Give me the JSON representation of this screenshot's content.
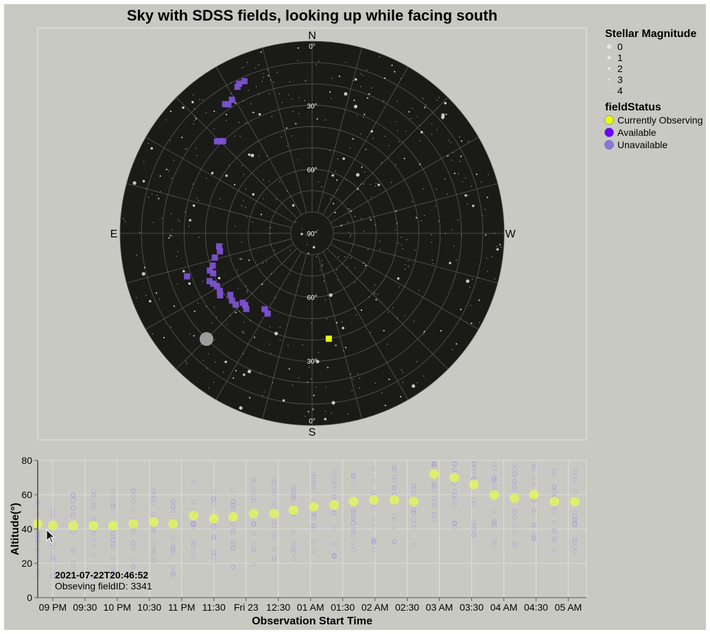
{
  "chart_data": [
    {
      "type": "scatter",
      "title": "Sky with SDSS fields, looking up while facing south",
      "projection": "polar altitude-azimuth",
      "compass": {
        "north": "N",
        "south": "S",
        "east": "E",
        "west": "W"
      },
      "altitude_rings": [
        "0°",
        "30°",
        "60°",
        "90°",
        "60°",
        "30°",
        "0°"
      ],
      "grid": true,
      "legend_position": "top-right",
      "legends": {
        "magnitude": {
          "title": "Stellar Magnitude",
          "values": [
            "0",
            "1",
            "2",
            "3",
            "4"
          ]
        },
        "status": {
          "title": "fieldStatus",
          "entries": [
            {
              "label": "Currently Observing",
              "color": "#e8ff00"
            },
            {
              "label": "Available",
              "color": "#6a00ff"
            },
            {
              "label": "Unavailable",
              "color": "#8a78d8"
            }
          ]
        }
      },
      "colors": {
        "sky": "#1a1a17",
        "star": "#d8d8d8",
        "field": "#7b52d0",
        "current": "#e8ff00"
      },
      "current_field": {
        "altitude": 40,
        "azimuth": 189
      },
      "fields": [
        {
          "altitude": 12,
          "azimuth": 26
        },
        {
          "altitude": 12,
          "azimuth": 24
        },
        {
          "altitude": 13,
          "azimuth": 27
        },
        {
          "altitude": 17,
          "azimuth": 34
        },
        {
          "altitude": 18,
          "azimuth": 33
        },
        {
          "altitude": 17,
          "azimuth": 31
        },
        {
          "altitude": 29,
          "azimuth": 45
        },
        {
          "altitude": 30,
          "azimuth": 44
        },
        {
          "altitude": 28,
          "azimuth": 46
        },
        {
          "altitude": 46,
          "azimuth": 98
        },
        {
          "altitude": 46,
          "azimuth": 101
        },
        {
          "altitude": 43,
          "azimuth": 104
        },
        {
          "altitude": 41,
          "azimuth": 108
        },
        {
          "altitude": 39,
          "azimuth": 110
        },
        {
          "altitude": 40,
          "azimuth": 112
        },
        {
          "altitude": 37,
          "azimuth": 115
        },
        {
          "altitude": 38,
          "azimuth": 117
        },
        {
          "altitude": 39,
          "azimuth": 119
        },
        {
          "altitude": 39,
          "azimuth": 122
        },
        {
          "altitude": 38,
          "azimuth": 124
        },
        {
          "altitude": 42,
          "azimuth": 127
        },
        {
          "altitude": 41,
          "azimuth": 130
        },
        {
          "altitude": 41,
          "azimuth": 133
        },
        {
          "altitude": 44,
          "azimuth": 135
        },
        {
          "altitude": 44,
          "azimuth": 137
        },
        {
          "altitude": 43,
          "azimuth": 139
        },
        {
          "altitude": 48,
          "azimuth": 148
        },
        {
          "altitude": 47,
          "azimuth": 151
        },
        {
          "altitude": 28,
          "azimuth": 109
        }
      ],
      "moon": {
        "altitude": 20,
        "azimuth": 135,
        "magnitude": -2
      }
    },
    {
      "type": "scatter",
      "xlabel": "Observation Start Time",
      "ylabel": "Altitude(°)",
      "ylim": [
        0,
        80
      ],
      "y_ticks": [
        "0",
        "20",
        "40",
        "60",
        "80"
      ],
      "x_ticks": [
        "09 PM",
        "09:30",
        "10 PM",
        "10:30",
        "11 PM",
        "11:30",
        "Fri 23",
        "12:30",
        "01 AM",
        "01:30",
        "02 AM",
        "02:30",
        "03 AM",
        "03:30",
        "04 AM",
        "04:30",
        "05 AM"
      ],
      "xlim": [
        "2021-07-22T20:46",
        "2021-07-23T05:17"
      ],
      "grid": true,
      "observed_series": {
        "name": "Currently Observing",
        "x": [
          "20:46",
          "21:00",
          "21:19",
          "21:38",
          "21:56",
          "22:15",
          "22:34",
          "22:52",
          "23:11",
          "23:30",
          "23:48",
          "00:07",
          "00:26",
          "00:44",
          "01:03",
          "01:22",
          "01:40",
          "01:59",
          "02:18",
          "02:36",
          "02:55",
          "03:14",
          "03:32",
          "03:51",
          "04:10",
          "04:28",
          "04:47",
          "05:06"
        ],
        "y": [
          43,
          42,
          42,
          42,
          42,
          43,
          44,
          43,
          48,
          46,
          47,
          49,
          49,
          51,
          53,
          54,
          56,
          57,
          57,
          56,
          72,
          70,
          66,
          60,
          58,
          60,
          56,
          56
        ]
      },
      "tooltip": {
        "time": "2021-07-22T20:46:52",
        "text": "Obseving fieldID: 3341"
      }
    }
  ]
}
